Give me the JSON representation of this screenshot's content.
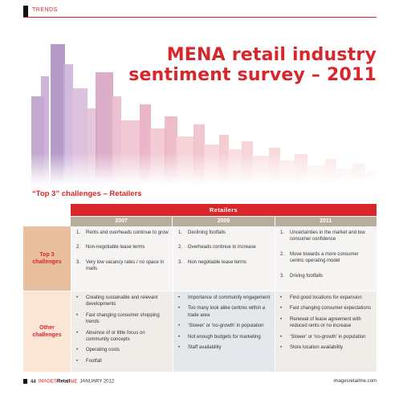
{
  "header": {
    "section_label": "TRENDS"
  },
  "hero": {
    "title_line1": "MENA retail industry",
    "title_line2": "sentiment survey – 2011"
  },
  "subhead": "“Top 3” challenges – Retailers",
  "table": {
    "main_header": "Retailers",
    "years": [
      "2007",
      "2009",
      "2011"
    ],
    "top3_label": "Top 3 challenges",
    "top3": [
      [
        {
          "n": "1.",
          "t": "Rents and overheads continue to grow"
        },
        {
          "n": "2.",
          "t": "Non-negotiable lease terms"
        },
        {
          "n": "3.",
          "t": "Very low vacancy rates / no space in malls"
        }
      ],
      [
        {
          "n": "1.",
          "t": "Declining footfalls"
        },
        {
          "n": "2.",
          "t": "Overheads continue to increase"
        },
        {
          "n": "3.",
          "t": "Non negotiable lease terms"
        }
      ],
      [
        {
          "n": "1.",
          "t": "Uncertainties in the market  and low consumer confidence"
        },
        {
          "n": "2.",
          "t": "Move towards a more consumer centric operating model"
        },
        {
          "n": "3.",
          "t": "Driving footfalls"
        }
      ]
    ],
    "other_label": "Other challenges",
    "other": [
      [
        "Creating sustainable and relevant developments",
        "Fast changing consumer shopping trends",
        "Absence of or little focus on community concepts",
        "Operating costs",
        "Footfall"
      ],
      [
        "Importance of community engagement",
        "Too many look alike centres within a trade area",
        "‘Slower’ or ‘no-growth’ in population",
        "Not enough budgets for marketing",
        "Staff availability"
      ],
      [
        "Find good locations for expansion",
        "Fast changing consumer expectations",
        "Renewal of lease agreement with reduced rents or no increase",
        "‘Slower’ or ‘no-growth’ in population",
        "Store location availability"
      ]
    ]
  },
  "footer": {
    "page": "44",
    "mag_part1": "IMAGES",
    "mag_part2": "Retail",
    "mag_part3": "ME",
    "issue": "JANUARY 2012",
    "site": "imagesretailme.com"
  }
}
